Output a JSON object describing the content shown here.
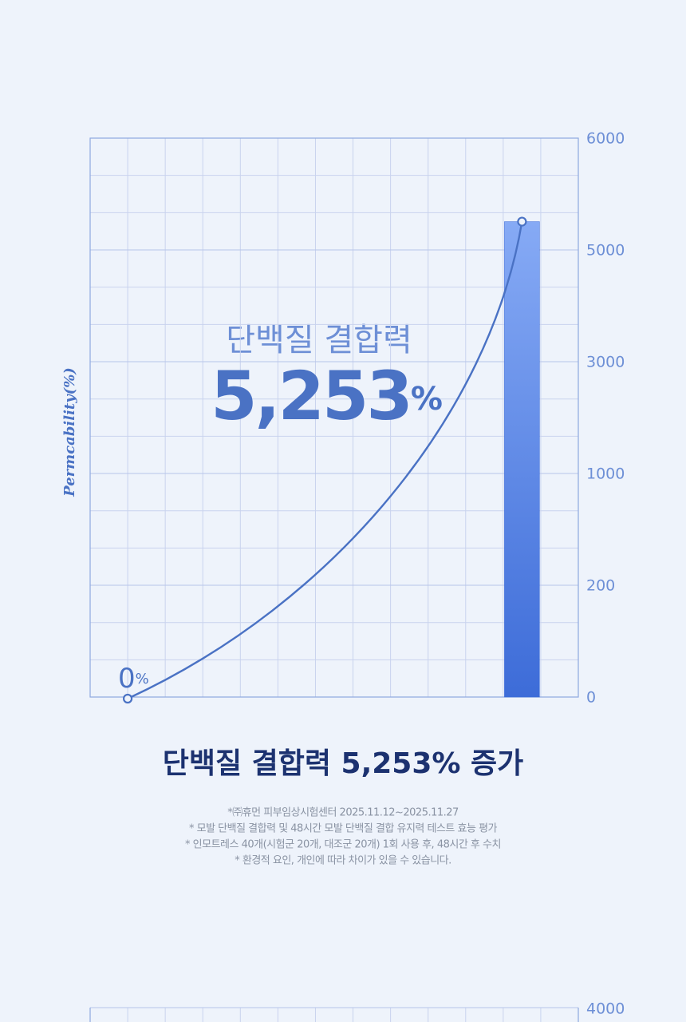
{
  "chart_data": [
    {
      "type": "bar",
      "y_label": "Permcability(%)",
      "annotation": "단백질 결합력",
      "categories": [
        null,
        null
      ],
      "values": [
        0,
        5253
      ],
      "value_labels": [
        "0%",
        "5,253%"
      ],
      "color": "#3d6cd8",
      "line_color": "#4a72c4",
      "ylim": [
        0,
        6000
      ],
      "yticks": [
        0,
        200,
        1000,
        3000,
        5000,
        6000
      ],
      "grid": true,
      "caption": "단백질 결합력 5,253% 증가",
      "notes": [
        "*㈜휴먼 피부임상시험센터 2025.11.12~2025.11.27",
        "* 모발 단백질 결합력 및 48시간 모발 단백질 결합 유지력 테스트 효능 평가",
        "* 인모트레스 40개(시험군 20개, 대조군 20개) 1회 사용 후, 48시간 후 수치",
        "* 환경적 요인, 개인에 따라 차이가 있을 수 있습니다."
      ]
    },
    {
      "type": "bar",
      "ylim": [
        0,
        4000
      ],
      "yticks": [
        4000
      ],
      "grid": true
    }
  ]
}
